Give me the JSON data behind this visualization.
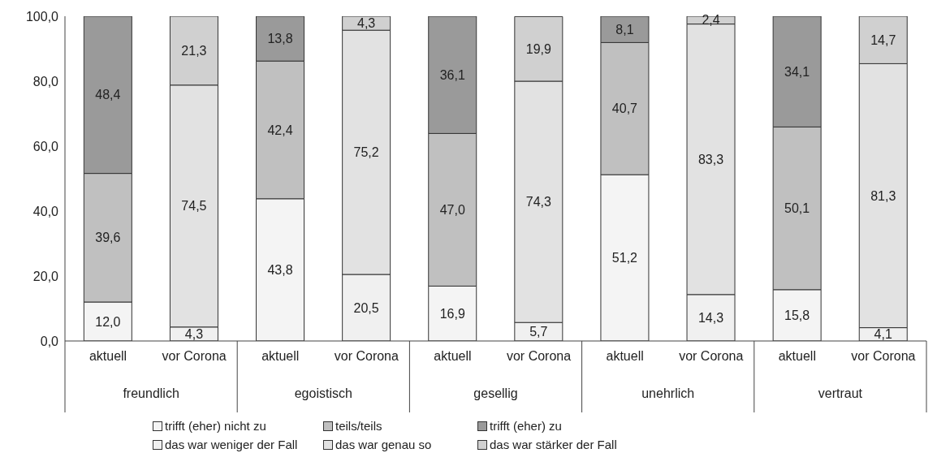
{
  "chart_data": {
    "type": "bar",
    "stacked": true,
    "categories": [
      "aktuell",
      "vor Corona",
      "aktuell",
      "vor Corona",
      "aktuell",
      "vor Corona",
      "aktuell",
      "vor Corona",
      "aktuell",
      "vor Corona"
    ],
    "annotations": [
      "freundlich",
      "egoistisch",
      "gesellig",
      "unehrlich",
      "vertraut"
    ],
    "series": [
      {
        "name": "trifft (eher) nicht zu",
        "color": "#f4f4f4",
        "values": [
          12.0,
          null,
          43.8,
          null,
          16.9,
          null,
          51.2,
          null,
          15.8,
          null
        ],
        "value_labels": [
          "12,0",
          null,
          "43,8",
          null,
          "16,9",
          null,
          "51,2",
          null,
          "15,8",
          null
        ]
      },
      {
        "name": "teils/teils",
        "color": "#c0c0c0",
        "values": [
          39.6,
          null,
          42.4,
          null,
          47.0,
          null,
          40.7,
          null,
          50.1,
          null
        ],
        "value_labels": [
          "39,6",
          null,
          "42,4",
          null,
          "47,0",
          null,
          "40,7",
          null,
          "50,1",
          null
        ]
      },
      {
        "name": "trifft (eher) zu",
        "color": "#9a9a9a",
        "values": [
          48.4,
          null,
          13.8,
          null,
          36.1,
          null,
          8.1,
          null,
          34.1,
          null
        ],
        "value_labels": [
          "48,4",
          null,
          "13,8",
          null,
          "36,1",
          null,
          "8,1",
          null,
          "34,1",
          null
        ]
      },
      {
        "name": "das war weniger der Fall",
        "color": "#f0f0f0",
        "values": [
          null,
          4.3,
          null,
          20.5,
          null,
          5.7,
          null,
          14.3,
          null,
          4.1
        ],
        "value_labels": [
          null,
          "4,3",
          null,
          "20,5",
          null,
          "5,7",
          null,
          "14,3",
          null,
          "4,1"
        ]
      },
      {
        "name": "das war genau so",
        "color": "#e2e2e2",
        "values": [
          null,
          74.5,
          null,
          75.2,
          null,
          74.3,
          null,
          83.3,
          null,
          81.3
        ],
        "value_labels": [
          null,
          "74,5",
          null,
          "75,2",
          null,
          "74,3",
          null,
          "83,3",
          null,
          "81,3"
        ]
      },
      {
        "name": "das war stärker der Fall",
        "color": "#d0d0d0",
        "values": [
          null,
          21.3,
          null,
          4.3,
          null,
          19.9,
          null,
          2.4,
          null,
          14.7
        ],
        "value_labels": [
          null,
          "21,3",
          null,
          "4,3",
          null,
          "19,9",
          null,
          "2,4",
          null,
          "14,7"
        ]
      }
    ],
    "ylim": [
      0,
      100
    ],
    "yticks": [
      {
        "value": 0,
        "label": "0,0"
      },
      {
        "value": 20,
        "label": "20,0"
      },
      {
        "value": 40,
        "label": "40,0"
      },
      {
        "value": 60,
        "label": "60,0"
      },
      {
        "value": 80,
        "label": "80,0"
      },
      {
        "value": 100,
        "label": "100,0"
      }
    ],
    "grid": false,
    "legend": "bottom"
  }
}
